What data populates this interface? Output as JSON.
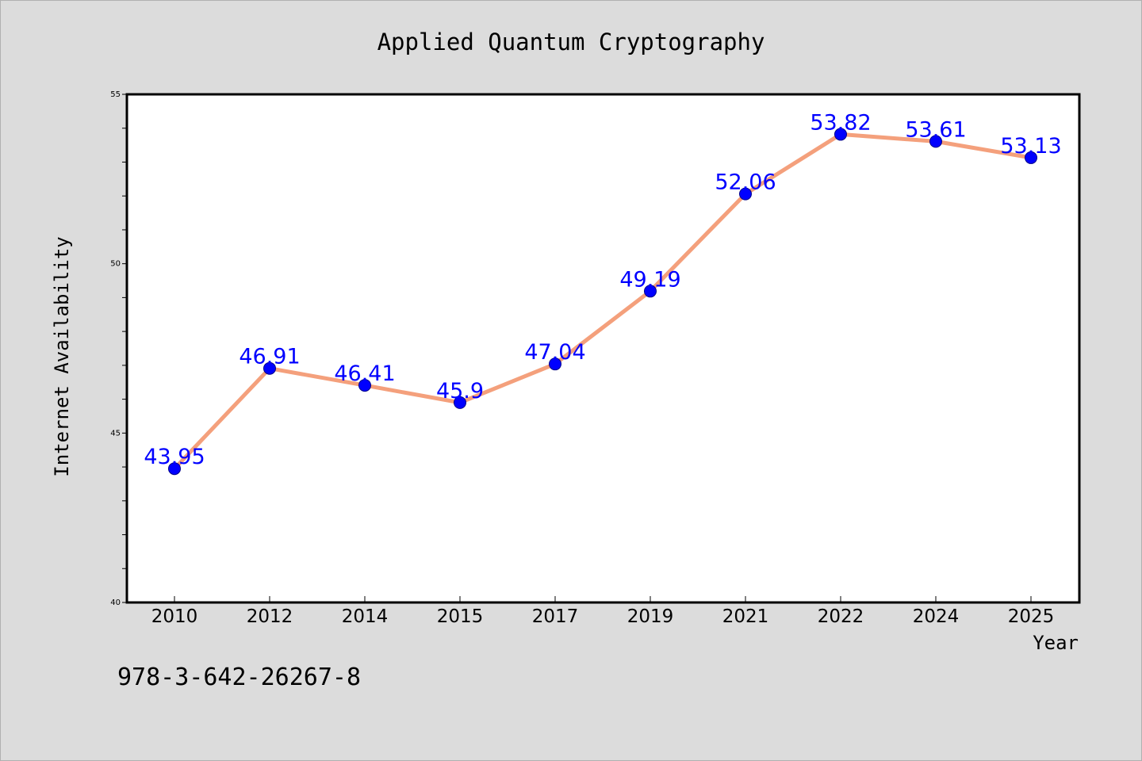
{
  "chart_data": {
    "type": "line",
    "title": "Applied Quantum Cryptography",
    "xlabel": "Year",
    "ylabel": "Internet Availability",
    "categories": [
      "2010",
      "2012",
      "2014",
      "2015",
      "2017",
      "2019",
      "2021",
      "2022",
      "2024",
      "2025"
    ],
    "series": [
      {
        "values": [
          43.95,
          46.91,
          46.41,
          45.9,
          47.04,
          49.19,
          52.06,
          53.82,
          53.61,
          53.13
        ],
        "labels": [
          "43.95",
          "46.91",
          "46.41",
          "45.9",
          "47.04",
          "49.19",
          "52.06",
          "53.82",
          "53.61",
          "53.13"
        ]
      }
    ],
    "ylim": [
      40,
      55
    ],
    "yticks": [
      "40",
      "45",
      "50",
      "55"
    ],
    "grid": false,
    "colors": {
      "line": "#f4a07c",
      "marker": "#0000ff",
      "data_label": "#0000ff",
      "background": "#dcdcdc",
      "plot_area": "#ffffff"
    }
  },
  "footer": {
    "isbn": "978-3-642-26267-8"
  }
}
